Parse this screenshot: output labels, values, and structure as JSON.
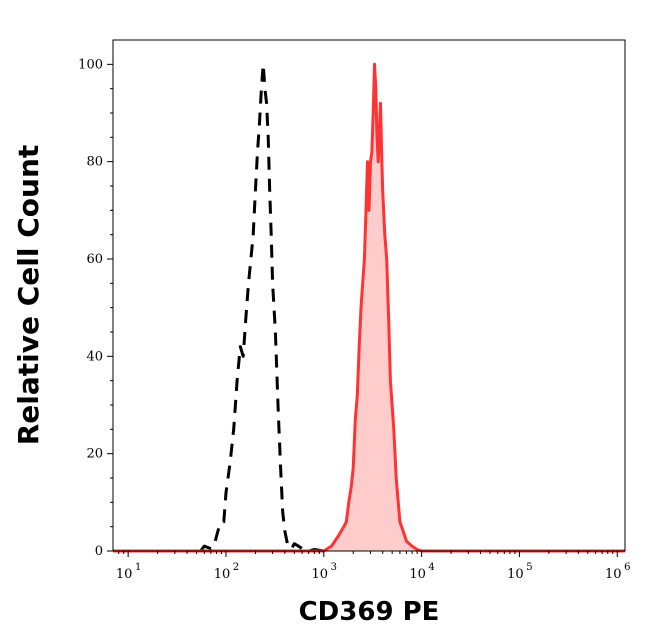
{
  "chart_data": {
    "type": "area",
    "title": "",
    "xlabel": "CD369 PE",
    "ylabel": "Relative Cell Count",
    "x_scale": "log",
    "xlim": [
      7,
      1200000
    ],
    "ylim": [
      0,
      105
    ],
    "x_ticks": [
      {
        "base": "10",
        "exp": "1",
        "value": 10
      },
      {
        "base": "10",
        "exp": "2",
        "value": 100
      },
      {
        "base": "10",
        "exp": "3",
        "value": 1000
      },
      {
        "base": "10",
        "exp": "4",
        "value": 10000
      },
      {
        "base": "10",
        "exp": "5",
        "value": 100000
      },
      {
        "base": "10",
        "exp": "6",
        "value": 1000000
      }
    ],
    "y_ticks": [
      0,
      20,
      40,
      60,
      80,
      100
    ],
    "grid": false,
    "legend": "none",
    "series": [
      {
        "style": "dashed",
        "color": "#000000",
        "filled": false,
        "points": [
          [
            7,
            0
          ],
          [
            55,
            0
          ],
          [
            60,
            1
          ],
          [
            70,
            0.5
          ],
          [
            75,
            1
          ],
          [
            80,
            3
          ],
          [
            85,
            5
          ],
          [
            90,
            6
          ],
          [
            95,
            6
          ],
          [
            100,
            12
          ],
          [
            110,
            18
          ],
          [
            120,
            25
          ],
          [
            130,
            35
          ],
          [
            140,
            42
          ],
          [
            150,
            40
          ],
          [
            160,
            48
          ],
          [
            170,
            55
          ],
          [
            180,
            60
          ],
          [
            190,
            65
          ],
          [
            200,
            74
          ],
          [
            210,
            82
          ],
          [
            220,
            88
          ],
          [
            230,
            95
          ],
          [
            240,
            100
          ],
          [
            250,
            95
          ],
          [
            260,
            92
          ],
          [
            270,
            85
          ],
          [
            280,
            74
          ],
          [
            290,
            65
          ],
          [
            300,
            55
          ],
          [
            320,
            45
          ],
          [
            340,
            30
          ],
          [
            360,
            18
          ],
          [
            380,
            8
          ],
          [
            400,
            4
          ],
          [
            430,
            1
          ],
          [
            470,
            0.5
          ],
          [
            500,
            1.5
          ],
          [
            550,
            1
          ],
          [
            600,
            0.5
          ],
          [
            700,
            0
          ],
          [
            800,
            0.3
          ],
          [
            1000,
            0
          ]
        ]
      },
      {
        "style": "solid",
        "color": "#ff3333",
        "fill": "#ffcccc",
        "filled": true,
        "points": [
          [
            7,
            0
          ],
          [
            1000,
            0
          ],
          [
            1200,
            1
          ],
          [
            1400,
            3
          ],
          [
            1600,
            5
          ],
          [
            1700,
            6
          ],
          [
            1800,
            10
          ],
          [
            1900,
            13
          ],
          [
            2000,
            17
          ],
          [
            2100,
            27
          ],
          [
            2200,
            32
          ],
          [
            2300,
            42
          ],
          [
            2400,
            50
          ],
          [
            2500,
            55
          ],
          [
            2600,
            60
          ],
          [
            2700,
            70
          ],
          [
            2800,
            80
          ],
          [
            2900,
            70
          ],
          [
            3000,
            80
          ],
          [
            3100,
            82
          ],
          [
            3200,
            90
          ],
          [
            3300,
            100
          ],
          [
            3400,
            95
          ],
          [
            3500,
            85
          ],
          [
            3600,
            80
          ],
          [
            3700,
            86
          ],
          [
            3800,
            92
          ],
          [
            3900,
            82
          ],
          [
            4000,
            74
          ],
          [
            4200,
            65
          ],
          [
            4400,
            60
          ],
          [
            4600,
            48
          ],
          [
            4800,
            35
          ],
          [
            5200,
            25
          ],
          [
            5500,
            15
          ],
          [
            6000,
            6
          ],
          [
            6500,
            4
          ],
          [
            7000,
            2
          ],
          [
            8000,
            1
          ],
          [
            9000,
            0.3
          ],
          [
            10000,
            0
          ],
          [
            1200000,
            0
          ]
        ]
      }
    ]
  }
}
